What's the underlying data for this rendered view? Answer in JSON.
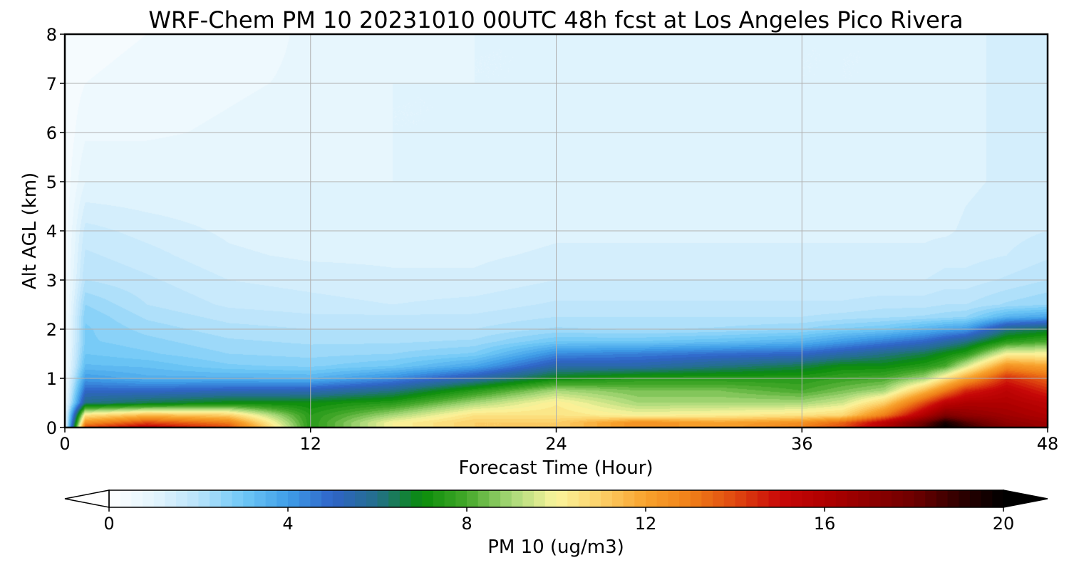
{
  "chart_data": {
    "type": "heatmap",
    "title": "WRF-Chem PM 10  20231010 00UTC 48h fcst at Los Angeles Pico Rivera",
    "xlabel": "Forecast Time (Hour)",
    "ylabel": "Alt AGL (km)",
    "xlim": [
      0,
      48
    ],
    "ylim": [
      0,
      8
    ],
    "x_ticks": [
      0,
      12,
      24,
      36,
      48
    ],
    "x_tick_labels": [
      "0",
      "12",
      "24",
      "36",
      "48"
    ],
    "y_ticks": [
      0,
      1,
      2,
      3,
      4,
      5,
      6,
      7,
      8
    ],
    "y_tick_labels": [
      "0",
      "1",
      "2",
      "3",
      "4",
      "5",
      "6",
      "7",
      "8"
    ],
    "grid": true,
    "colorbar": {
      "label": "PM 10  (ug/m3)",
      "range": [
        0,
        20
      ],
      "ticks": [
        0,
        4,
        8,
        12,
        16,
        20
      ],
      "tick_labels": [
        "0",
        "4",
        "8",
        "12",
        "16",
        "20"
      ],
      "extend": "both",
      "placement": "bottom",
      "color_stops": [
        {
          "value": 0,
          "color": "#ffffff"
        },
        {
          "value": 1,
          "color": "#e4f5fd"
        },
        {
          "value": 2,
          "color": "#b8e3fb"
        },
        {
          "value": 3,
          "color": "#6fc8f6"
        },
        {
          "value": 4,
          "color": "#3f9ee8"
        },
        {
          "value": 5,
          "color": "#2f64c8"
        },
        {
          "value": 6,
          "color": "#236f8a"
        },
        {
          "value": 7,
          "color": "#0a8c0a"
        },
        {
          "value": 8,
          "color": "#44a82a"
        },
        {
          "value": 9,
          "color": "#a8d878"
        },
        {
          "value": 10,
          "color": "#fbf49c"
        },
        {
          "value": 11,
          "color": "#fcd068"
        },
        {
          "value": 12,
          "color": "#f8a22c"
        },
        {
          "value": 13,
          "color": "#f08018"
        },
        {
          "value": 14,
          "color": "#e04810"
        },
        {
          "value": 15,
          "color": "#c80808"
        },
        {
          "value": 16,
          "color": "#b00000"
        },
        {
          "value": 18,
          "color": "#6e0000"
        },
        {
          "value": 19,
          "color": "#300000"
        },
        {
          "value": 20,
          "color": "#000000"
        }
      ]
    },
    "field": {
      "x": [
        0,
        1,
        4,
        8,
        12,
        16,
        20,
        24,
        28,
        32,
        36,
        38,
        40,
        42,
        43,
        44,
        46,
        48
      ],
      "z": [
        0,
        0.1,
        0.25,
        0.5,
        0.75,
        1.0,
        1.25,
        1.5,
        1.75,
        2.0,
        2.25,
        2.5,
        3.0,
        3.5,
        4.0,
        5.0,
        6.0,
        7.0,
        8.0
      ],
      "values": [
        [
          0.5,
          0.5,
          0.5,
          0.5,
          0.4,
          0.4,
          0.3,
          0.3,
          0.3,
          0.3,
          0.3,
          0.3,
          0.3,
          0.3,
          0.3,
          0.3,
          0.3,
          0.3,
          0.3
        ],
        [
          14.0,
          12.5,
          10.5,
          6.0,
          5.0,
          4.0,
          3.3,
          3.0,
          2.8,
          2.8,
          2.7,
          2.5,
          2.0,
          1.8,
          1.6,
          1.0,
          0.7,
          0.5,
          0.4
        ],
        [
          15.5,
          14.0,
          11.5,
          6.5,
          5.0,
          3.6,
          3.2,
          2.8,
          2.6,
          2.4,
          2.2,
          2.0,
          1.8,
          1.6,
          1.4,
          1.0,
          0.7,
          0.6,
          0.5
        ],
        [
          14.0,
          13.0,
          11.0,
          7.0,
          5.2,
          3.6,
          2.8,
          2.5,
          2.3,
          2.1,
          1.9,
          1.7,
          1.5,
          1.3,
          1.2,
          1.0,
          0.8,
          0.7,
          0.6
        ],
        [
          7.5,
          7.5,
          7.5,
          7.0,
          5.3,
          3.5,
          2.7,
          2.4,
          2.2,
          2.0,
          1.8,
          1.6,
          1.4,
          1.2,
          1.1,
          1.0,
          0.9,
          0.8,
          0.8
        ],
        [
          10.0,
          10.0,
          9.0,
          7.5,
          6.0,
          4.3,
          3.0,
          2.5,
          2.2,
          2.0,
          1.8,
          1.5,
          1.3,
          1.2,
          1.1,
          1.0,
          1.0,
          1.0,
          0.9
        ],
        [
          11.0,
          11.0,
          10.5,
          9.0,
          7.5,
          5.5,
          3.8,
          2.8,
          2.3,
          2.0,
          1.8,
          1.6,
          1.3,
          1.2,
          1.1,
          1.1,
          1.0,
          1.0,
          1.0
        ],
        [
          11.0,
          11.0,
          10.5,
          10.2,
          9.0,
          7.0,
          5.5,
          4.3,
          3.0,
          2.3,
          2.0,
          1.8,
          1.5,
          1.3,
          1.2,
          1.1,
          1.1,
          1.0,
          1.0
        ],
        [
          12.5,
          12.5,
          10.0,
          9.0,
          8.5,
          7.5,
          5.5,
          4.5,
          3.0,
          2.2,
          2.0,
          1.8,
          1.5,
          1.3,
          1.2,
          1.1,
          1.1,
          1.1,
          1.0
        ],
        [
          12.0,
          12.0,
          10.2,
          9.0,
          8.5,
          7.5,
          6.0,
          4.8,
          3.2,
          2.3,
          2.0,
          1.8,
          1.5,
          1.3,
          1.2,
          1.1,
          1.1,
          1.1,
          1.1
        ],
        [
          13.0,
          12.5,
          10.5,
          9.0,
          8.0,
          7.5,
          6.5,
          5.0,
          3.5,
          2.5,
          2.0,
          1.8,
          1.5,
          1.3,
          1.2,
          1.1,
          1.1,
          1.0,
          1.0
        ],
        [
          14.0,
          13.5,
          10.8,
          9.5,
          8.5,
          7.8,
          7.0,
          5.5,
          4.0,
          2.8,
          2.1,
          1.8,
          1.5,
          1.3,
          1.2,
          1.1,
          1.0,
          1.0,
          1.0
        ],
        [
          16.0,
          15.5,
          13.0,
          11.0,
          9.0,
          8.0,
          7.0,
          6.0,
          4.5,
          3.0,
          2.2,
          1.9,
          1.5,
          1.3,
          1.2,
          1.1,
          1.1,
          1.0,
          1.0
        ],
        [
          18.5,
          18.0,
          16.0,
          14.0,
          11.5,
          9.0,
          7.5,
          6.5,
          5.0,
          3.5,
          2.3,
          1.9,
          1.5,
          1.3,
          1.2,
          1.1,
          1.1,
          1.1,
          1.1
        ],
        [
          20.0,
          19.5,
          17.5,
          15.5,
          13.0,
          10.5,
          8.0,
          7.0,
          5.5,
          3.8,
          2.4,
          2.0,
          1.6,
          1.4,
          1.2,
          1.1,
          1.1,
          1.1,
          1.1
        ],
        [
          19.0,
          18.5,
          17.0,
          16.0,
          14.5,
          12.0,
          9.5,
          7.5,
          6.0,
          4.0,
          2.5,
          2.0,
          1.6,
          1.4,
          1.3,
          1.2,
          1.2,
          1.2,
          1.2
        ],
        [
          17.5,
          17.0,
          16.5,
          16.0,
          15.5,
          14.5,
          12.5,
          10.0,
          7.5,
          6.0,
          3.5,
          2.3,
          1.8,
          1.5,
          1.4,
          1.3,
          1.3,
          1.3,
          1.3
        ],
        [
          16.5,
          16.5,
          16.0,
          15.5,
          14.5,
          13.5,
          12.0,
          10.0,
          8.0,
          6.5,
          3.8,
          2.5,
          2.0,
          1.7,
          1.5,
          1.4,
          1.3,
          1.3,
          1.3
        ]
      ]
    }
  }
}
